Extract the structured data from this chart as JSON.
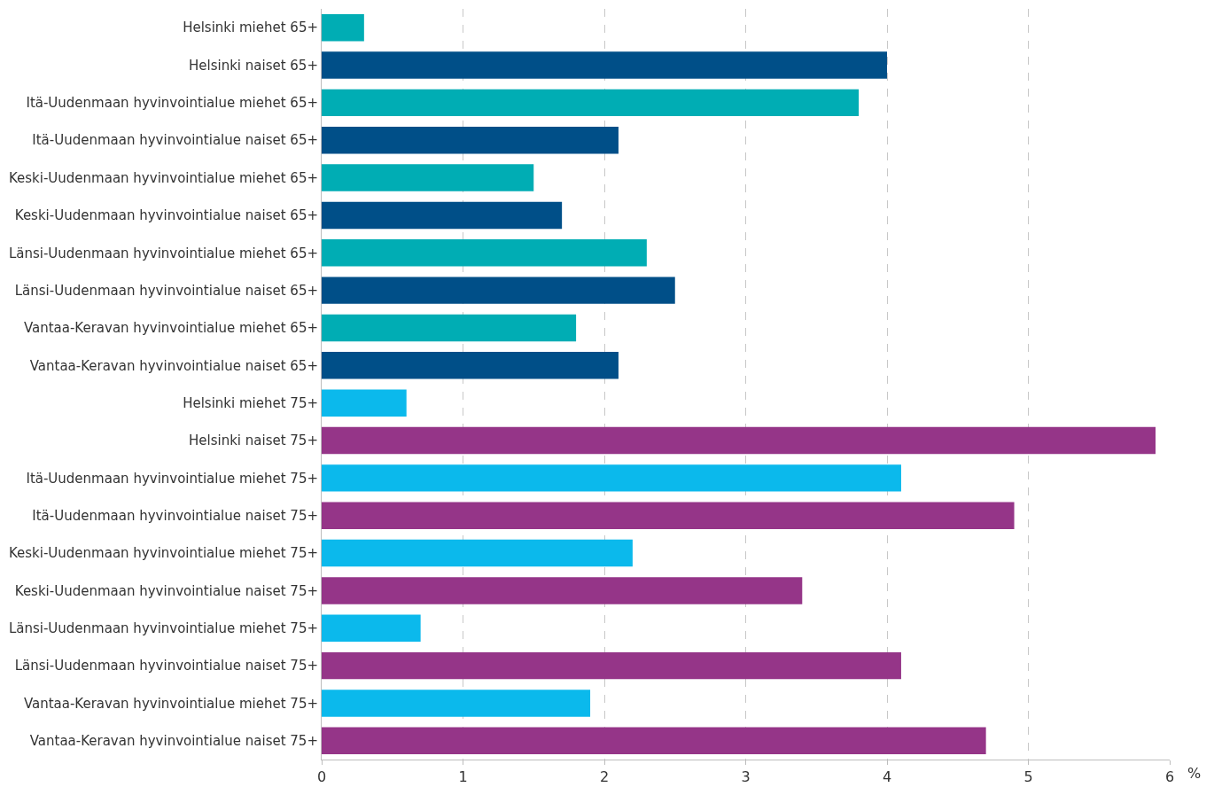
{
  "chart_data": {
    "type": "bar",
    "orientation": "horizontal",
    "xlabel": "%",
    "categories": [
      "Helsinki miehet 65+",
      "Helsinki naiset 65+",
      "Itä-Uudenmaan hyvinvointialue miehet 65+",
      "Itä-Uudenmaan hyvinvointialue naiset 65+",
      "Keski-Uudenmaan hyvinvointialue miehet 65+",
      "Keski-Uudenmaan hyvinvointialue naiset 65+",
      "Länsi-Uudenmaan hyvinvointialue miehet 65+",
      "Länsi-Uudenmaan hyvinvointialue naiset 65+",
      "Vantaa-Keravan hyvinvointialue miehet 65+",
      "Vantaa-Keravan hyvinvointialue naiset 65+",
      "Helsinki miehet 75+",
      "Helsinki naiset 75+",
      "Itä-Uudenmaan hyvinvointialue miehet 75+",
      "Itä-Uudenmaan hyvinvointialue naiset 75+",
      "Keski-Uudenmaan hyvinvointialue miehet 75+",
      "Keski-Uudenmaan hyvinvointialue naiset 75+",
      "Länsi-Uudenmaan hyvinvointialue miehet 75+",
      "Länsi-Uudenmaan hyvinvointialue naiset 75+",
      "Vantaa-Keravan hyvinvointialue miehet 75+",
      "Vantaa-Keravan hyvinvointialue naiset 75+"
    ],
    "values": [
      0.3,
      4.0,
      3.8,
      2.1,
      1.5,
      1.7,
      2.3,
      2.5,
      1.8,
      2.1,
      0.6,
      5.9,
      4.1,
      4.9,
      2.2,
      3.4,
      0.7,
      4.1,
      1.9,
      4.7
    ],
    "colors": [
      "#00adb4",
      "#004f88",
      "#00adb4",
      "#004f88",
      "#00adb4",
      "#004f88",
      "#00adb4",
      "#004f88",
      "#00adb4",
      "#004f88",
      "#0bb9ec",
      "#953588",
      "#0bb9ec",
      "#953588",
      "#0bb9ec",
      "#953588",
      "#0bb9ec",
      "#953588",
      "#0bb9ec",
      "#953588"
    ],
    "xlim": [
      0,
      6
    ],
    "xticks": [
      0,
      1,
      2,
      3,
      4,
      5,
      6
    ],
    "grid": "x"
  }
}
